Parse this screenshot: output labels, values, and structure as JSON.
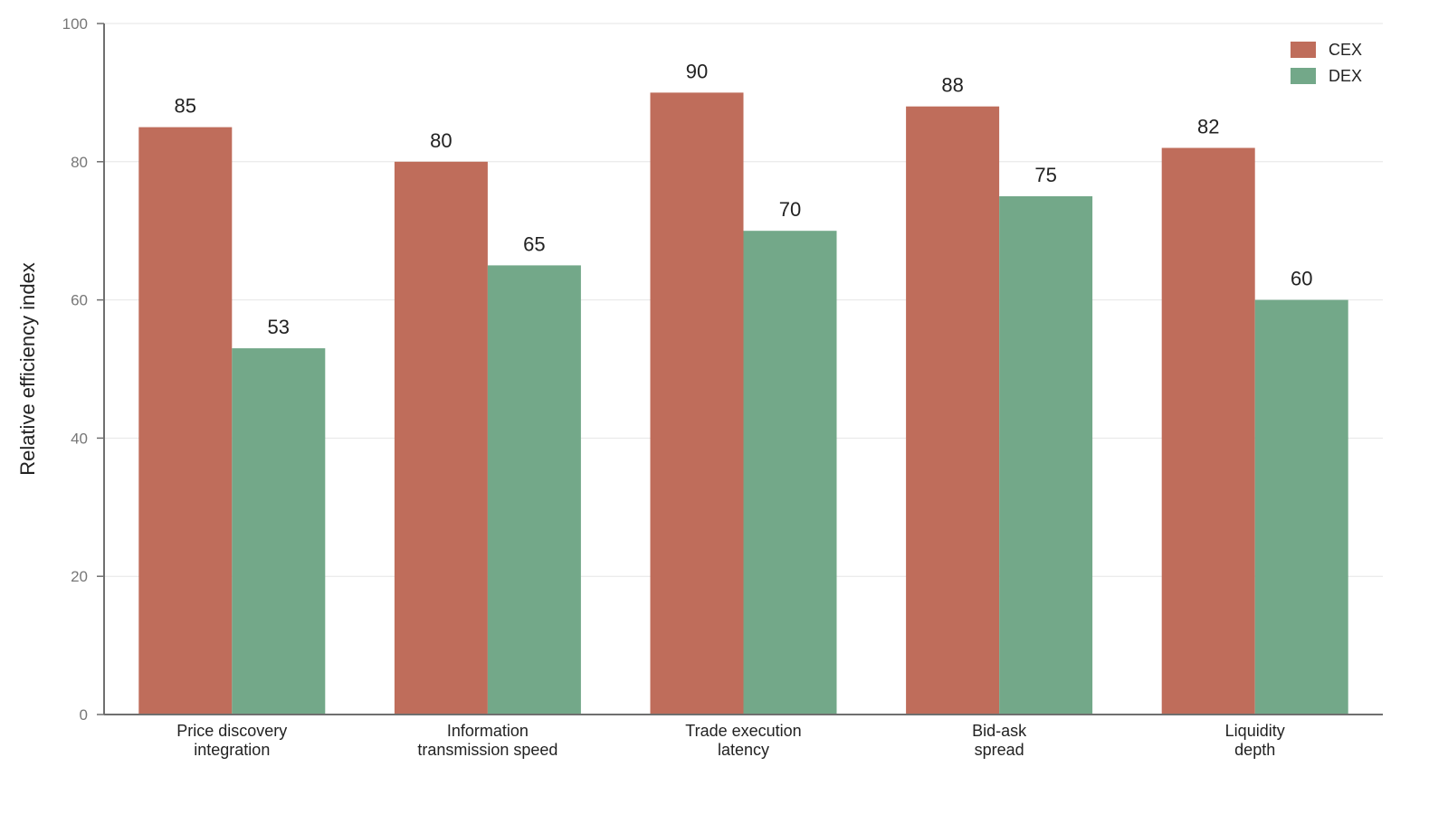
{
  "chart_data": {
    "type": "bar",
    "categories": [
      [
        "Price discovery",
        "integration"
      ],
      [
        "Information",
        "transmission speed"
      ],
      [
        "Trade execution",
        "latency"
      ],
      [
        "Bid-ask",
        "spread"
      ],
      [
        "Liquidity",
        "depth"
      ]
    ],
    "series": [
      {
        "name": "CEX",
        "color": "#bf6d5b",
        "values": [
          85,
          80,
          90,
          88,
          82
        ]
      },
      {
        "name": "DEX",
        "color": "#73a889",
        "values": [
          53,
          65,
          70,
          75,
          60
        ]
      }
    ],
    "title": "",
    "xlabel": "",
    "ylabel": "Relative efficiency index",
    "ylim": [
      0,
      100
    ],
    "yticks": [
      0,
      20,
      40,
      60,
      80,
      100
    ],
    "grid": true,
    "legend_position": "top-right",
    "data_labels": true
  }
}
